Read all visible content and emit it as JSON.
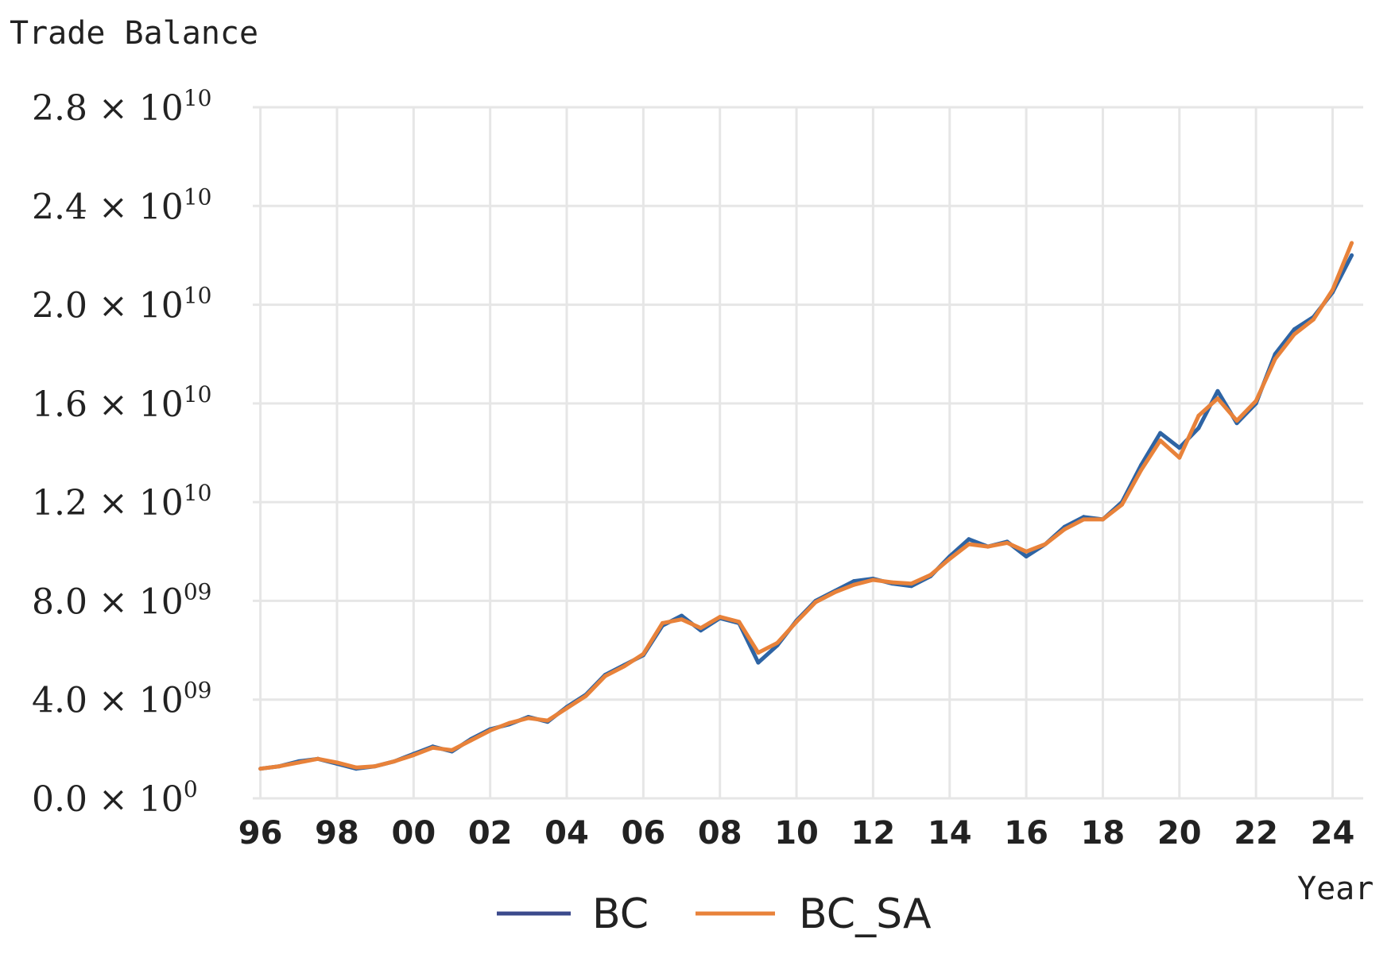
{
  "chart_data": {
    "type": "line",
    "ylabel": "Trade Balance",
    "xlabel": "Year",
    "ylim": [
      0,
      28000000000
    ],
    "xlim": [
      1995.8,
      2024.8
    ],
    "grid": true,
    "legend_position": "bottom-center",
    "y_ticks": [
      {
        "value": 0,
        "mantissa": "0.0",
        "exp": "0"
      },
      {
        "value": 4000000000,
        "mantissa": "4.0",
        "exp": "09"
      },
      {
        "value": 8000000000,
        "mantissa": "8.0",
        "exp": "09"
      },
      {
        "value": 12000000000,
        "mantissa": "1.2",
        "exp": "10"
      },
      {
        "value": 16000000000,
        "mantissa": "1.6",
        "exp": "10"
      },
      {
        "value": 20000000000,
        "mantissa": "2.0",
        "exp": "10"
      },
      {
        "value": 24000000000,
        "mantissa": "2.4",
        "exp": "10"
      },
      {
        "value": 28000000000,
        "mantissa": "2.8",
        "exp": "10"
      }
    ],
    "x_ticks": [
      {
        "value": 1996,
        "label": "96"
      },
      {
        "value": 1998,
        "label": "98"
      },
      {
        "value": 2000,
        "label": "00"
      },
      {
        "value": 2002,
        "label": "02"
      },
      {
        "value": 2004,
        "label": "04"
      },
      {
        "value": 2006,
        "label": "06"
      },
      {
        "value": 2008,
        "label": "08"
      },
      {
        "value": 2010,
        "label": "10"
      },
      {
        "value": 2012,
        "label": "12"
      },
      {
        "value": 2014,
        "label": "14"
      },
      {
        "value": 2016,
        "label": "16"
      },
      {
        "value": 2018,
        "label": "18"
      },
      {
        "value": 2020,
        "label": "20"
      },
      {
        "value": 2022,
        "label": "22"
      },
      {
        "value": 2024,
        "label": "24"
      }
    ],
    "series": [
      {
        "name": "BC",
        "color": "#2e64a4",
        "legend_color": "#3b4a8c",
        "x": [
          1996.0,
          1996.5,
          1997.0,
          1997.5,
          1998.0,
          1998.5,
          1999.0,
          1999.5,
          2000.0,
          2000.5,
          2001.0,
          2001.5,
          2002.0,
          2002.5,
          2003.0,
          2003.5,
          2004.0,
          2004.5,
          2005.0,
          2005.5,
          2006.0,
          2006.5,
          2007.0,
          2007.5,
          2008.0,
          2008.5,
          2009.0,
          2009.5,
          2010.0,
          2010.5,
          2011.0,
          2011.5,
          2012.0,
          2012.5,
          2013.0,
          2013.5,
          2014.0,
          2014.5,
          2015.0,
          2015.5,
          2016.0,
          2016.5,
          2017.0,
          2017.5,
          2018.0,
          2018.5,
          2019.0,
          2019.5,
          2020.0,
          2020.5,
          2021.0,
          2021.5,
          2022.0,
          2022.5,
          2023.0,
          2023.5,
          2024.0,
          2024.5
        ],
        "values": [
          1200000000,
          1300000000,
          1500000000,
          1600000000,
          1400000000,
          1200000000,
          1300000000,
          1500000000,
          1800000000,
          2100000000,
          1900000000,
          2400000000,
          2800000000,
          3000000000,
          3300000000,
          3100000000,
          3700000000,
          4200000000,
          5000000000,
          5400000000,
          5800000000,
          7000000000,
          7400000000,
          6800000000,
          7300000000,
          7100000000,
          5500000000,
          6200000000,
          7200000000,
          8000000000,
          8400000000,
          8800000000,
          8900000000,
          8700000000,
          8600000000,
          9000000000,
          9800000000,
          10500000000,
          10200000000,
          10400000000,
          9800000000,
          10300000000,
          11000000000,
          11400000000,
          11300000000,
          12000000000,
          13500000000,
          14800000000,
          14200000000,
          15000000000,
          16500000000,
          15200000000,
          16000000000,
          18000000000,
          19000000000,
          19500000000,
          20500000000,
          22000000000
        ]
      },
      {
        "name": "BC_SA",
        "color": "#e8823a",
        "legend_color": "#e8823a",
        "x": [
          1996.0,
          1996.5,
          1997.0,
          1997.5,
          1998.0,
          1998.5,
          1999.0,
          1999.5,
          2000.0,
          2000.5,
          2001.0,
          2001.5,
          2002.0,
          2002.5,
          2003.0,
          2003.5,
          2004.0,
          2004.5,
          2005.0,
          2005.5,
          2006.0,
          2006.5,
          2007.0,
          2007.5,
          2008.0,
          2008.5,
          2009.0,
          2009.5,
          2010.0,
          2010.5,
          2011.0,
          2011.5,
          2012.0,
          2012.5,
          2013.0,
          2013.5,
          2014.0,
          2014.5,
          2015.0,
          2015.5,
          2016.0,
          2016.5,
          2017.0,
          2017.5,
          2018.0,
          2018.5,
          2019.0,
          2019.5,
          2020.0,
          2020.5,
          2021.0,
          2021.5,
          2022.0,
          2022.5,
          2023.0,
          2023.5,
          2024.0,
          2024.5
        ],
        "values": [
          1200000000,
          1300000000,
          1450000000,
          1600000000,
          1450000000,
          1250000000,
          1300000000,
          1500000000,
          1750000000,
          2050000000,
          1950000000,
          2350000000,
          2750000000,
          3050000000,
          3250000000,
          3150000000,
          3650000000,
          4150000000,
          4950000000,
          5350000000,
          5850000000,
          7100000000,
          7250000000,
          6900000000,
          7350000000,
          7150000000,
          5900000000,
          6300000000,
          7150000000,
          7950000000,
          8350000000,
          8650000000,
          8850000000,
          8750000000,
          8700000000,
          9050000000,
          9700000000,
          10300000000,
          10200000000,
          10350000000,
          10000000000,
          10300000000,
          10900000000,
          11300000000,
          11300000000,
          11900000000,
          13300000000,
          14500000000,
          13800000000,
          15500000000,
          16200000000,
          15300000000,
          16100000000,
          17800000000,
          18800000000,
          19400000000,
          20600000000,
          22500000000
        ]
      }
    ]
  }
}
